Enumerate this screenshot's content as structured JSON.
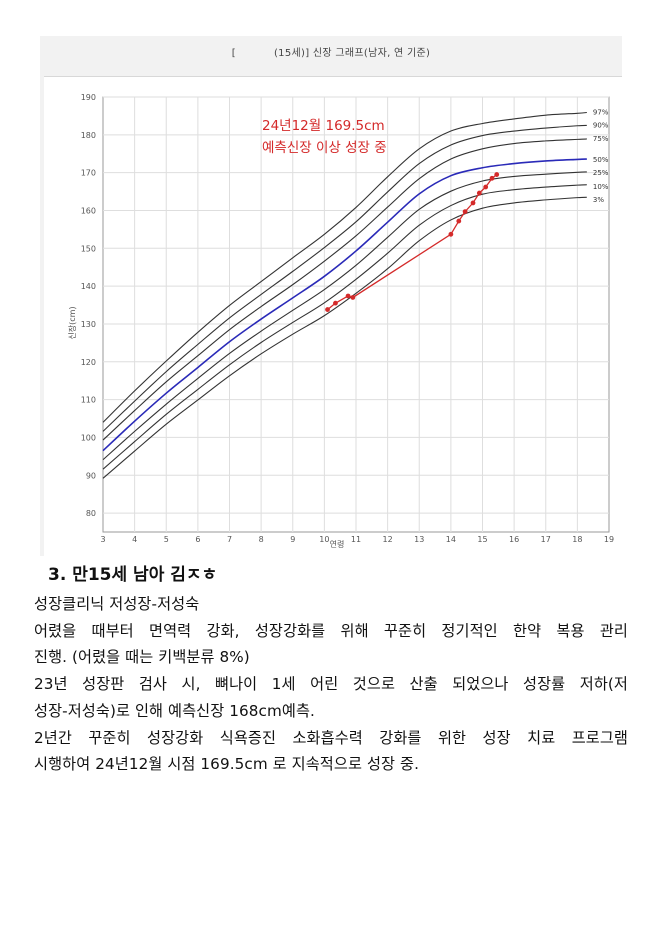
{
  "chart": {
    "title_prefix": "[",
    "title": "(15세)] 신장 그래프(남자, 연 기준)"
  },
  "chart_data": {
    "type": "line",
    "title": "(15세)] 신장 그래프(남자, 연 기준)",
    "xlabel": "연령",
    "ylabel": "신장(cm)",
    "xlim": [
      3,
      19
    ],
    "ylim": [
      75,
      190
    ],
    "x_ticks": [
      3,
      4,
      5,
      6,
      7,
      8,
      9,
      10,
      11,
      12,
      13,
      14,
      15,
      16,
      17,
      18,
      19
    ],
    "y_ticks": [
      80,
      90,
      100,
      110,
      120,
      130,
      140,
      150,
      160,
      170,
      180,
      190
    ],
    "grid": true,
    "x": [
      3,
      4,
      5,
      6,
      7,
      8,
      9,
      10,
      11,
      12,
      13,
      14,
      15,
      16,
      17,
      18,
      18.3
    ],
    "series": [
      {
        "name": "97%",
        "color": "#333333",
        "values": [
          104,
          112.3,
          120.2,
          127.8,
          134.9,
          141.2,
          147.5,
          153.7,
          160.8,
          168.9,
          176.3,
          181,
          183,
          184.2,
          185.2,
          185.7,
          185.9
        ]
      },
      {
        "name": "90%",
        "color": "#333333",
        "values": [
          101.6,
          109.6,
          117.4,
          124.6,
          131.6,
          137.8,
          143.9,
          150.2,
          157,
          164.9,
          172.4,
          177.3,
          179.8,
          181,
          181.8,
          182.4,
          182.5
        ]
      },
      {
        "name": "75%",
        "color": "#333333",
        "values": [
          99.3,
          107.1,
          114.7,
          121.6,
          128.5,
          134.6,
          140.4,
          146.6,
          153.3,
          160.9,
          168.4,
          173.6,
          176.3,
          177.7,
          178.4,
          178.8,
          178.9
        ]
      },
      {
        "name": "50%",
        "color": "#2a2ab8",
        "values": [
          96.5,
          104.3,
          111.7,
          118.5,
          125.3,
          131.3,
          136.9,
          142.6,
          149.3,
          156.9,
          164.4,
          169.2,
          171.3,
          172.4,
          173.1,
          173.5,
          173.6
        ]
      },
      {
        "name": "25%",
        "color": "#333333",
        "values": [
          94.1,
          101.6,
          108.8,
          115.6,
          122.2,
          128.1,
          133.6,
          139.1,
          145.5,
          152.9,
          160.3,
          165.1,
          167.8,
          169,
          169.6,
          170.1,
          170.2
        ]
      },
      {
        "name": "10%",
        "color": "#333333",
        "values": [
          91.6,
          98.9,
          106.1,
          112.7,
          119.2,
          125.1,
          130.4,
          135.6,
          141.8,
          148.7,
          156.1,
          161.3,
          164.3,
          165.5,
          166.2,
          166.7,
          166.8
        ]
      },
      {
        "name": "3%",
        "color": "#333333",
        "values": [
          89.2,
          96.4,
          103.5,
          109.9,
          116.3,
          122.1,
          127.3,
          132.2,
          138.1,
          144.6,
          152,
          157.5,
          160.6,
          162,
          162.8,
          163.4,
          163.5
        ]
      }
    ],
    "patient": {
      "color": "#d42a2a",
      "x": [
        10.1,
        10.35,
        10.75,
        10.9,
        14.0,
        14.25,
        14.45,
        14.7,
        14.9,
        15.1,
        15.3,
        15.45
      ],
      "y": [
        133.8,
        135.5,
        137.4,
        137.0,
        153.7,
        157.2,
        159.7,
        162.0,
        164.6,
        166.2,
        168.5,
        169.5
      ]
    },
    "annotation": {
      "line1": "24년12월 169.5cm",
      "line2": "예측신장 이상 성장 중",
      "color": "#d42a2a"
    }
  },
  "case": {
    "heading": "3. 만15세 남아 김ㅈㅎ",
    "lines": [
      "성장클리닉 저성장-저성숙",
      "어렸을 때부터 면역력 강화, 성장강화를 위해 꾸준히 정기적인 한약 복용 관리",
      "진행. (어렸을 때는 키백분류 8%)",
      "23년 성장판 검사 시, 뼈나이 1세 어린 것으로 산출 되었으나 성장률 저하(저",
      "성장-저성숙)로 인해 예측신장 168cm예측.",
      "2년간 꾸준히 성장강화 식욕증진 소화흡수력 강화를 위한 성장 치료 프로그램",
      "시행하여 24년12월 시점 169.5cm 로 지속적으로 성장 중."
    ]
  }
}
